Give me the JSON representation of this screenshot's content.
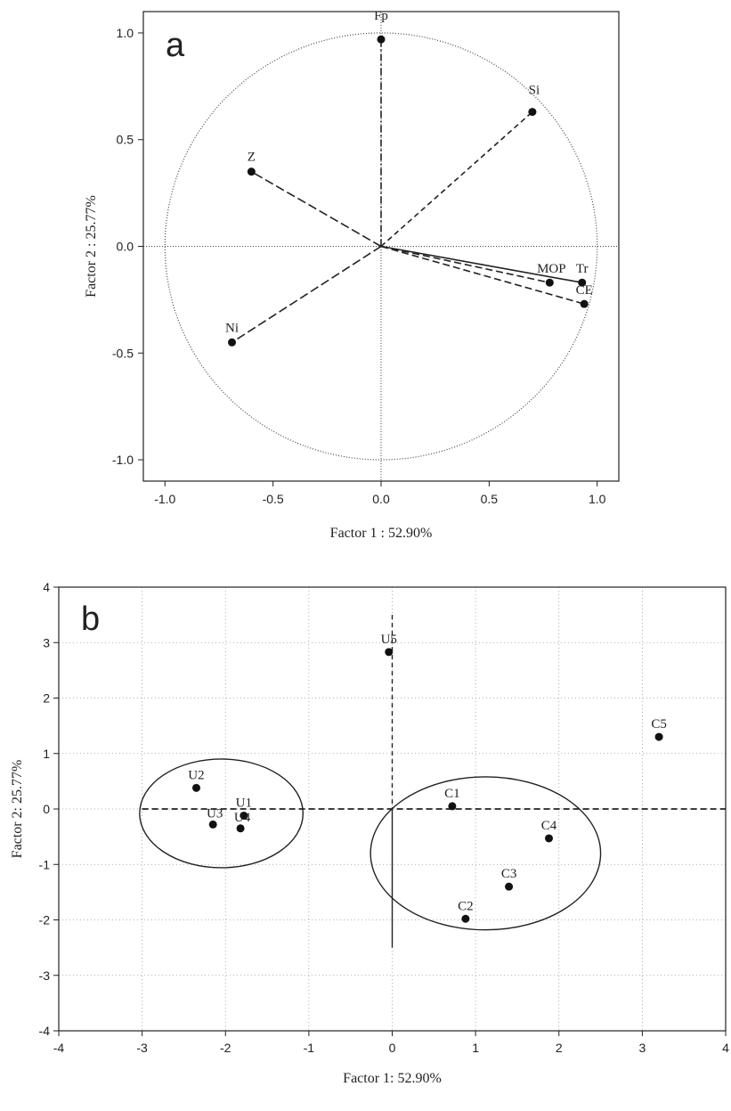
{
  "chart_data": [
    {
      "type": "scatter",
      "panel_label": "a",
      "xlabel": "Factor 1 : 52.90%",
      "ylabel": "Factor 2 : 25.77%",
      "xlim": [
        -1.1,
        1.1
      ],
      "ylim": [
        -1.1,
        1.1
      ],
      "xticks": [
        "-1.0",
        "-0.5",
        "0.0",
        "0.5",
        "1.0"
      ],
      "yticks": [
        "1.0",
        "0.5",
        "0.0",
        "-0.5",
        "-1.0"
      ],
      "unit_circle": true,
      "points": [
        {
          "label": "Fp",
          "x": 0.0,
          "y": 0.97
        },
        {
          "label": "Si",
          "x": 0.7,
          "y": 0.63
        },
        {
          "label": "Z",
          "x": -0.6,
          "y": 0.35
        },
        {
          "label": "Ni",
          "x": -0.69,
          "y": -0.45
        },
        {
          "label": "MOP",
          "x": 0.78,
          "y": -0.17
        },
        {
          "label": "Tr",
          "x": 0.93,
          "y": -0.17
        },
        {
          "label": "CE",
          "x": 0.94,
          "y": -0.27
        }
      ]
    },
    {
      "type": "scatter",
      "panel_label": "b",
      "xlabel": "Factor 1: 52.90%",
      "ylabel": "Factor 2: 25.77%",
      "xlim": [
        -4,
        4
      ],
      "ylim": [
        -4,
        4
      ],
      "xticks": [
        "-4",
        "-3",
        "-2",
        "-1",
        "0",
        "1",
        "2",
        "3",
        "4"
      ],
      "yticks": [
        "4",
        "3",
        "2",
        "1",
        "0",
        "-1",
        "-2",
        "-3",
        "-4"
      ],
      "points": [
        {
          "label": "U5",
          "x": -0.04,
          "y": 2.83
        },
        {
          "label": "C5",
          "x": 3.2,
          "y": 1.3
        },
        {
          "label": "U2",
          "x": -2.35,
          "y": 0.38
        },
        {
          "label": "U1",
          "x": -1.78,
          "y": -0.12
        },
        {
          "label": "U3",
          "x": -2.15,
          "y": -0.28
        },
        {
          "label": "U4",
          "x": -1.82,
          "y": -0.35
        },
        {
          "label": "C1",
          "x": 0.72,
          "y": 0.05
        },
        {
          "label": "C4",
          "x": 1.88,
          "y": -0.53
        },
        {
          "label": "C3",
          "x": 1.4,
          "y": -1.4
        },
        {
          "label": "C2",
          "x": 0.88,
          "y": -1.98
        }
      ],
      "clusters": [
        {
          "cx": -2.05,
          "cy": -0.08,
          "r": 0.98
        },
        {
          "cx": 1.12,
          "cy": -0.8,
          "r": 1.38
        }
      ]
    }
  ]
}
